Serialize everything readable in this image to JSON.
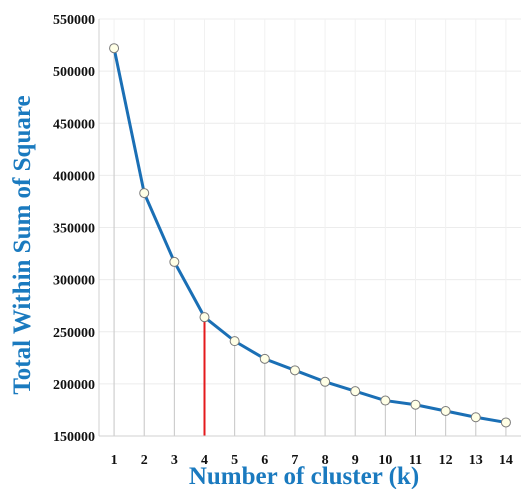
{
  "colors": {
    "line": "#1a6fb5",
    "highlight": "#e41a1c",
    "marker_fill": "#ffffe6",
    "marker_stroke": "#7a7a7a",
    "title": "#1a7abf",
    "drop_line": "#c8c8c8"
  },
  "chart_data": {
    "type": "line",
    "title": "",
    "xlabel": "Number of cluster (k)",
    "ylabel": "Total Within Sum of Square",
    "x": [
      1,
      2,
      3,
      4,
      5,
      6,
      7,
      8,
      9,
      10,
      11,
      12,
      13,
      14
    ],
    "series": [
      {
        "values": [
          522000,
          383000,
          317000,
          264000,
          241000,
          224000,
          213000,
          202000,
          193000,
          184000,
          180000,
          174000,
          168000,
          163000
        ]
      }
    ],
    "highlight_k": 4,
    "xlim": [
      0.5,
      14.5
    ],
    "ylim": [
      150000,
      550000
    ],
    "yticks": [
      150000,
      200000,
      250000,
      300000,
      350000,
      400000,
      450000,
      500000,
      550000
    ],
    "ytick_labels": [
      "150000",
      "200000",
      "250000",
      "300000",
      "350000",
      "400000",
      "450000",
      "500000",
      "550000"
    ],
    "xtick_labels": [
      "1",
      "2",
      "3",
      "4",
      "5",
      "6",
      "7",
      "8",
      "9",
      "10",
      "11",
      "12",
      "13",
      "14"
    ],
    "grid": true,
    "legend": "none"
  }
}
